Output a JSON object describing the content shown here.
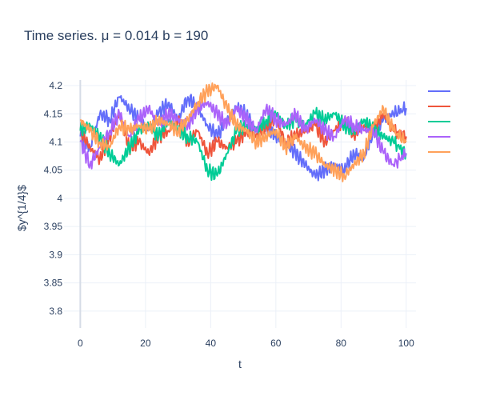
{
  "chart_data": {
    "type": "line",
    "title": "Time series. μ = 0.014 b = 190",
    "xlabel": "t",
    "ylabel": "$y^{1/4}$",
    "xlim": [
      -5,
      103
    ],
    "ylim": [
      3.77,
      4.21
    ],
    "xticks": [
      0,
      20,
      40,
      60,
      80,
      100
    ],
    "yticks": [
      3.8,
      3.85,
      3.9,
      3.95,
      4.0,
      4.05,
      4.1,
      4.15,
      4.2
    ],
    "ytick_labels": [
      "3.8",
      "3.85",
      "3.9",
      "3.95",
      "4",
      "4.05",
      "4.1",
      "4.15",
      "4.2"
    ],
    "grid": true,
    "legend": "right",
    "series": [
      {
        "color": "#636efa",
        "x": [
          0,
          3,
          6,
          9,
          12,
          15,
          18,
          21,
          24,
          27,
          30,
          33,
          36,
          39,
          42,
          45,
          48,
          51,
          54,
          57,
          60,
          63,
          66,
          69,
          72,
          75,
          78,
          81,
          84,
          87,
          90,
          93,
          96,
          100
        ],
        "values": [
          4.11,
          4.09,
          4.15,
          4.14,
          4.18,
          4.16,
          4.14,
          4.12,
          4.15,
          4.17,
          4.14,
          4.18,
          4.16,
          4.13,
          4.11,
          4.14,
          4.16,
          4.15,
          4.12,
          4.13,
          4.11,
          4.1,
          4.08,
          4.06,
          4.04,
          4.05,
          4.06,
          4.05,
          4.08,
          4.07,
          4.12,
          4.14,
          4.15,
          4.16
        ]
      },
      {
        "color": "#ef553b",
        "x": [
          0,
          3,
          6,
          9,
          12,
          15,
          18,
          21,
          24,
          27,
          30,
          33,
          36,
          39,
          42,
          45,
          48,
          51,
          54,
          57,
          60,
          63,
          66,
          69,
          72,
          75,
          78,
          81,
          84,
          87,
          90,
          93,
          96,
          100
        ],
        "values": [
          4.12,
          4.09,
          4.07,
          4.11,
          4.15,
          4.09,
          4.1,
          4.08,
          4.11,
          4.12,
          4.14,
          4.1,
          4.12,
          4.08,
          4.1,
          4.09,
          4.1,
          4.12,
          4.11,
          4.13,
          4.14,
          4.1,
          4.11,
          4.12,
          4.13,
          4.1,
          4.12,
          4.14,
          4.11,
          4.13,
          4.12,
          4.15,
          4.12,
          4.11
        ]
      },
      {
        "color": "#00cc96",
        "x": [
          0,
          3,
          6,
          9,
          12,
          15,
          18,
          21,
          24,
          27,
          30,
          33,
          36,
          39,
          42,
          45,
          48,
          51,
          54,
          57,
          60,
          63,
          66,
          69,
          72,
          75,
          78,
          81,
          84,
          87,
          90,
          93,
          96,
          100
        ],
        "values": [
          4.12,
          4.13,
          4.11,
          4.08,
          4.06,
          4.09,
          4.12,
          4.13,
          4.11,
          4.14,
          4.12,
          4.11,
          4.1,
          4.05,
          4.04,
          4.08,
          4.12,
          4.13,
          4.12,
          4.14,
          4.15,
          4.13,
          4.14,
          4.13,
          4.15,
          4.14,
          4.15,
          4.13,
          4.12,
          4.14,
          4.12,
          4.11,
          4.1,
          4.08
        ]
      },
      {
        "color": "#ab63fa",
        "x": [
          0,
          3,
          6,
          9,
          12,
          15,
          18,
          21,
          24,
          27,
          30,
          33,
          36,
          39,
          42,
          45,
          48,
          51,
          54,
          57,
          60,
          63,
          66,
          69,
          72,
          75,
          78,
          81,
          84,
          87,
          90,
          93,
          96,
          100
        ],
        "values": [
          4.1,
          4.06,
          4.09,
          4.12,
          4.15,
          4.11,
          4.14,
          4.16,
          4.13,
          4.15,
          4.14,
          4.13,
          4.16,
          4.17,
          4.15,
          4.13,
          4.16,
          4.14,
          4.12,
          4.16,
          4.14,
          4.13,
          4.15,
          4.12,
          4.14,
          4.12,
          4.11,
          4.14,
          4.13,
          4.12,
          4.12,
          4.08,
          4.06,
          4.08
        ]
      },
      {
        "color": "#ffa15a",
        "x": [
          0,
          3,
          6,
          9,
          12,
          15,
          18,
          21,
          24,
          27,
          30,
          33,
          36,
          39,
          42,
          45,
          48,
          51,
          54,
          57,
          60,
          63,
          66,
          69,
          72,
          75,
          78,
          81,
          84,
          87,
          90,
          93,
          96,
          100
        ],
        "values": [
          4.14,
          4.12,
          4.1,
          4.09,
          4.13,
          4.12,
          4.13,
          4.12,
          4.14,
          4.13,
          4.12,
          4.14,
          4.17,
          4.19,
          4.2,
          4.16,
          4.13,
          4.12,
          4.1,
          4.11,
          4.12,
          4.09,
          4.11,
          4.09,
          4.08,
          4.06,
          4.05,
          4.04,
          4.06,
          4.08,
          4.13,
          4.16,
          4.12,
          4.1
        ]
      }
    ]
  }
}
